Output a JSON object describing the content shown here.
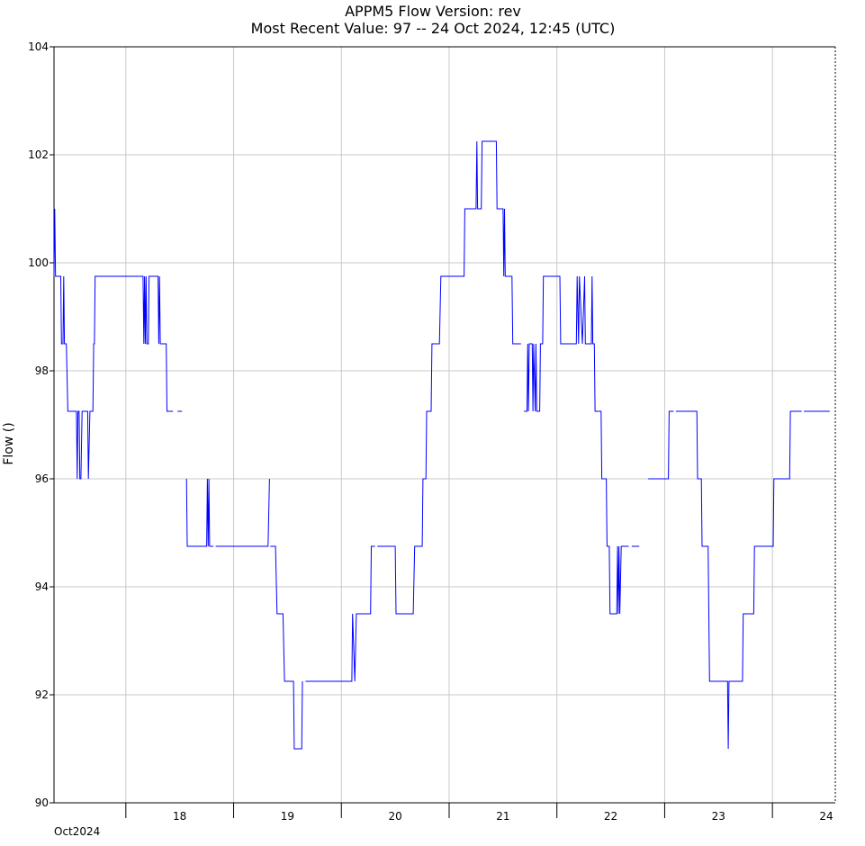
{
  "chart_data": {
    "type": "line",
    "title": "APPM5  Flow  Version: rev",
    "subtitle": "Most Recent Value: 97  --  24 Oct 2024, 12:45 (UTC)",
    "xlabel": "",
    "ylabel": "Flow ()",
    "ylim": [
      90,
      104
    ],
    "yticks": [
      90,
      92,
      94,
      96,
      98,
      100,
      102,
      104
    ],
    "xlim": [
      "2024-10-17T08:00",
      "2024-10-24T14:00"
    ],
    "x_day_ticks": [
      "2024-10-18T00:00",
      "2024-10-19T00:00",
      "2024-10-20T00:00",
      "2024-10-21T00:00",
      "2024-10-22T00:00",
      "2024-10-23T00:00",
      "2024-10-24T00:00"
    ],
    "x_tick_labels": [
      {
        "x": "2024-10-18T12:00",
        "label": "18"
      },
      {
        "x": "2024-10-19T12:00",
        "label": "19"
      },
      {
        "x": "2024-10-20T12:00",
        "label": "20"
      },
      {
        "x": "2024-10-21T12:00",
        "label": "21"
      },
      {
        "x": "2024-10-22T12:00",
        "label": "22"
      },
      {
        "x": "2024-10-23T12:00",
        "label": "23"
      },
      {
        "x": "2024-10-24T12:00",
        "label": "24"
      }
    ],
    "x_month_label": "Oct2024",
    "grid": true,
    "line_color": "#0000ff",
    "series": [
      {
        "segments": [
          [
            [
              "2024-10-17T08:00",
              99.75
            ],
            [
              "2024-10-17T08:10",
              101.0
            ],
            [
              "2024-10-17T08:20",
              99.75
            ],
            [
              "2024-10-17T09:30",
              99.75
            ],
            [
              "2024-10-17T09:40",
              98.5
            ],
            [
              "2024-10-17T10:00",
              98.5
            ],
            [
              "2024-10-17T10:10",
              99.75
            ],
            [
              "2024-10-17T10:20",
              98.5
            ],
            [
              "2024-10-17T10:45",
              98.5
            ],
            [
              "2024-10-17T11:05",
              97.25
            ],
            [
              "2024-10-17T13:00",
              97.25
            ],
            [
              "2024-10-17T13:10",
              96.0
            ],
            [
              "2024-10-17T13:20",
              97.25
            ],
            [
              "2024-10-17T13:35",
              97.25
            ],
            [
              "2024-10-17T13:45",
              96.0
            ],
            [
              "2024-10-17T14:00",
              96.0
            ],
            [
              "2024-10-17T14:15",
              97.25
            ],
            [
              "2024-10-17T15:30",
              97.25
            ],
            [
              "2024-10-17T15:40",
              96.0
            ],
            [
              "2024-10-17T16:00",
              97.25
            ],
            [
              "2024-10-17T16:40",
              97.25
            ],
            [
              "2024-10-17T16:50",
              98.5
            ],
            [
              "2024-10-17T17:00",
              98.5
            ],
            [
              "2024-10-17T17:10",
              99.75
            ],
            [
              "2024-10-18T03:50",
              99.75
            ],
            [
              "2024-10-18T04:00",
              98.5
            ],
            [
              "2024-10-18T04:10",
              99.75
            ],
            [
              "2024-10-18T04:20",
              98.5
            ],
            [
              "2024-10-18T04:30",
              99.75
            ],
            [
              "2024-10-18T04:40",
              98.5
            ],
            [
              "2024-10-18T05:00",
              98.5
            ],
            [
              "2024-10-18T05:10",
              99.75
            ],
            [
              "2024-10-18T07:10",
              99.75
            ],
            [
              "2024-10-18T07:20",
              98.5
            ],
            [
              "2024-10-18T07:30",
              99.75
            ],
            [
              "2024-10-18T07:40",
              98.5
            ],
            [
              "2024-10-18T09:00",
              98.5
            ],
            [
              "2024-10-18T09:10",
              97.25
            ],
            [
              "2024-10-18T10:30",
              97.25
            ]
          ],
          [
            [
              "2024-10-18T11:30",
              97.25
            ],
            [
              "2024-10-18T12:30",
              97.25
            ]
          ],
          [
            [
              "2024-10-18T13:30",
              96.0
            ],
            [
              "2024-10-18T13:40",
              94.75
            ],
            [
              "2024-10-18T18:00",
              94.75
            ],
            [
              "2024-10-18T18:10",
              96.0
            ],
            [
              "2024-10-18T18:20",
              94.75
            ],
            [
              "2024-10-18T18:30",
              96.0
            ],
            [
              "2024-10-18T18:40",
              94.75
            ],
            [
              "2024-10-18T19:30",
              94.75
            ]
          ],
          [
            [
              "2024-10-18T20:00",
              94.75
            ],
            [
              "2024-10-19T07:40",
              94.75
            ],
            [
              "2024-10-19T08:00",
              96.0
            ]
          ],
          [
            [
              "2024-10-19T08:10",
              94.75
            ],
            [
              "2024-10-19T09:20",
              94.75
            ],
            [
              "2024-10-19T09:40",
              93.5
            ],
            [
              "2024-10-19T11:00",
              93.5
            ],
            [
              "2024-10-19T11:20",
              92.25
            ],
            [
              "2024-10-19T13:20",
              92.25
            ],
            [
              "2024-10-19T13:30",
              91.0
            ],
            [
              "2024-10-19T15:10",
              91.0
            ],
            [
              "2024-10-19T15:20",
              92.25
            ]
          ],
          [
            [
              "2024-10-19T16:00",
              92.25
            ],
            [
              "2024-10-20T02:20",
              92.25
            ],
            [
              "2024-10-20T02:30",
              93.5
            ],
            [
              "2024-10-20T03:00",
              92.25
            ],
            [
              "2024-10-20T03:20",
              93.5
            ],
            [
              "2024-10-20T06:30",
              93.5
            ],
            [
              "2024-10-20T06:40",
              94.75
            ],
            [
              "2024-10-20T07:30",
              94.75
            ]
          ],
          [
            [
              "2024-10-20T08:00",
              94.75
            ],
            [
              "2024-10-20T12:00",
              94.75
            ],
            [
              "2024-10-20T12:10",
              93.5
            ],
            [
              "2024-10-20T16:00",
              93.5
            ],
            [
              "2024-10-20T16:20",
              94.75
            ],
            [
              "2024-10-20T18:00",
              94.75
            ],
            [
              "2024-10-20T18:10",
              96.0
            ],
            [
              "2024-10-20T18:50",
              96.0
            ],
            [
              "2024-10-20T19:00",
              97.25
            ],
            [
              "2024-10-20T20:00",
              97.25
            ],
            [
              "2024-10-20T20:10",
              98.5
            ],
            [
              "2024-10-20T21:50",
              98.5
            ],
            [
              "2024-10-20T22:10",
              99.75
            ],
            [
              "2024-10-21T03:20",
              99.75
            ],
            [
              "2024-10-21T03:30",
              101.0
            ],
            [
              "2024-10-21T06:00",
              101.0
            ],
            [
              "2024-10-21T06:10",
              102.25
            ],
            [
              "2024-10-21T06:20",
              101.0
            ],
            [
              "2024-10-21T07:10",
              101.0
            ],
            [
              "2024-10-21T07:20",
              102.25
            ],
            [
              "2024-10-21T10:30",
              102.25
            ],
            [
              "2024-10-21T10:40",
              101.0
            ],
            [
              "2024-10-21T12:00",
              101.0
            ],
            [
              "2024-10-21T12:10",
              99.75
            ],
            [
              "2024-10-21T12:20",
              101.0
            ],
            [
              "2024-10-21T12:30",
              99.75
            ],
            [
              "2024-10-21T14:00",
              99.75
            ],
            [
              "2024-10-21T14:10",
              98.5
            ],
            [
              "2024-10-21T16:00",
              98.5
            ]
          ],
          [
            [
              "2024-10-21T16:40",
              97.25
            ],
            [
              "2024-10-21T17:20",
              97.25
            ],
            [
              "2024-10-21T17:30",
              98.5
            ],
            [
              "2024-10-21T17:40",
              97.25
            ],
            [
              "2024-10-21T17:50",
              98.5
            ],
            [
              "2024-10-21T18:30",
              98.5
            ],
            [
              "2024-10-21T18:40",
              97.25
            ],
            [
              "2024-10-21T18:50",
              98.5
            ],
            [
              "2024-10-21T19:10",
              97.25
            ],
            [
              "2024-10-21T19:20",
              98.5
            ],
            [
              "2024-10-21T19:30",
              97.25
            ],
            [
              "2024-10-21T20:10",
              97.25
            ],
            [
              "2024-10-21T20:20",
              98.5
            ],
            [
              "2024-10-21T20:50",
              98.5
            ],
            [
              "2024-10-21T21:00",
              99.75
            ],
            [
              "2024-10-22T00:40",
              99.75
            ],
            [
              "2024-10-22T00:50",
              98.5
            ],
            [
              "2024-10-22T04:20",
              98.5
            ],
            [
              "2024-10-22T04:30",
              99.75
            ],
            [
              "2024-10-22T04:50",
              98.5
            ],
            [
              "2024-10-22T05:00",
              99.75
            ],
            [
              "2024-10-22T05:40",
              98.5
            ],
            [
              "2024-10-22T06:10",
              99.75
            ],
            [
              "2024-10-22T06:20",
              98.5
            ],
            [
              "2024-10-22T07:40",
              98.5
            ],
            [
              "2024-10-22T07:50",
              99.75
            ],
            [
              "2024-10-22T08:00",
              98.5
            ],
            [
              "2024-10-22T08:20",
              98.5
            ],
            [
              "2024-10-22T08:30",
              97.25
            ],
            [
              "2024-10-22T09:50",
              97.25
            ],
            [
              "2024-10-22T10:00",
              96.0
            ],
            [
              "2024-10-22T11:00",
              96.0
            ],
            [
              "2024-10-22T11:10",
              94.75
            ],
            [
              "2024-10-22T11:40",
              94.75
            ],
            [
              "2024-10-22T11:50",
              93.5
            ],
            [
              "2024-10-22T13:20",
              93.5
            ],
            [
              "2024-10-22T13:30",
              94.75
            ],
            [
              "2024-10-22T13:40",
              93.5
            ],
            [
              "2024-10-22T13:50",
              94.75
            ],
            [
              "2024-10-22T14:00",
              93.5
            ],
            [
              "2024-10-22T14:20",
              94.75
            ],
            [
              "2024-10-22T16:00",
              94.75
            ]
          ],
          [
            [
              "2024-10-22T16:40",
              94.75
            ],
            [
              "2024-10-22T18:20",
              94.75
            ]
          ],
          [
            [
              "2024-10-22T20:20",
              96.0
            ],
            [
              "2024-10-23T00:50",
              96.0
            ],
            [
              "2024-10-23T01:00",
              97.25
            ],
            [
              "2024-10-23T02:00",
              97.25
            ]
          ],
          [
            [
              "2024-10-23T02:30",
              97.25
            ],
            [
              "2024-10-23T07:10",
              97.25
            ],
            [
              "2024-10-23T07:20",
              96.0
            ],
            [
              "2024-10-23T08:10",
              96.0
            ],
            [
              "2024-10-23T08:20",
              94.75
            ],
            [
              "2024-10-23T09:40",
              94.75
            ],
            [
              "2024-10-23T09:50",
              93.5
            ],
            [
              "2024-10-23T10:00",
              92.25
            ],
            [
              "2024-10-23T14:00",
              92.25
            ],
            [
              "2024-10-23T14:10",
              91.0
            ],
            [
              "2024-10-23T14:20",
              92.25
            ],
            [
              "2024-10-23T17:20",
              92.25
            ],
            [
              "2024-10-23T17:30",
              93.5
            ],
            [
              "2024-10-23T19:50",
              93.5
            ],
            [
              "2024-10-23T20:00",
              94.75
            ],
            [
              "2024-10-24T00:10",
              94.75
            ],
            [
              "2024-10-24T00:20",
              96.0
            ],
            [
              "2024-10-24T03:50",
              96.0
            ],
            [
              "2024-10-24T04:00",
              97.25
            ],
            [
              "2024-10-24T06:30",
              97.25
            ]
          ],
          [
            [
              "2024-10-24T07:00",
              97.25
            ],
            [
              "2024-10-24T12:45",
              97.25
            ]
          ]
        ]
      }
    ]
  }
}
